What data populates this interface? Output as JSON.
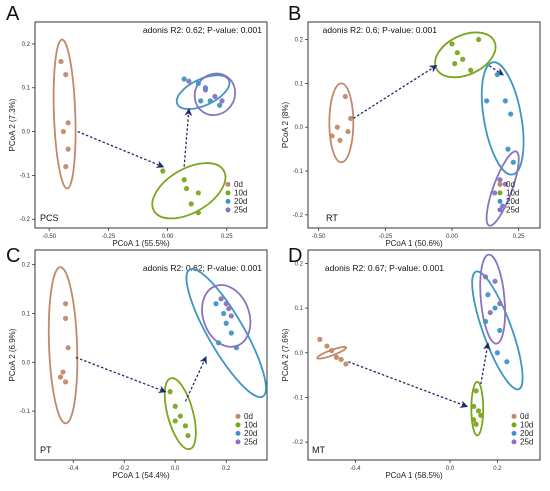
{
  "colors": {
    "0d": "#c08a6a",
    "10d": "#7aa61e",
    "20d": "#3f95c4",
    "25d": "#8a73be",
    "arrow": "#1f2a6b"
  },
  "chart_data": [
    {
      "panel": "A",
      "type": "scatter",
      "title": "adonis R2: 0.62; P-value: 0.001",
      "name": "PCS",
      "xlabel": "PCoA 1 (55.5%)",
      "ylabel": "PCoA 2 (7.3%)",
      "xlim": [
        -0.56,
        0.42
      ],
      "ylim": [
        -0.22,
        0.25
      ],
      "xticks": [
        -0.5,
        -0.25,
        0.0,
        0.25
      ],
      "xticklabels": [
        "-0.50",
        "-0.25",
        "0.00",
        "0.25"
      ],
      "yticks": [
        -0.2,
        -0.1,
        0.0,
        0.1,
        0.2
      ],
      "yticklabels": [
        "-0.2",
        "-0.1",
        "0.0",
        "0.1",
        "0.2"
      ],
      "legend": [
        "0d",
        "10d",
        "20d",
        "25d"
      ],
      "series": [
        {
          "name": "0d",
          "points": [
            [
              -0.45,
              0.16
            ],
            [
              -0.43,
              0.13
            ],
            [
              -0.42,
              0.02
            ],
            [
              -0.44,
              0.0
            ],
            [
              -0.42,
              -0.04
            ],
            [
              -0.43,
              -0.08
            ]
          ],
          "ellipse": [
            -0.435,
            0.04,
            0.045,
            0.17,
            -2
          ]
        },
        {
          "name": "10d",
          "points": [
            [
              -0.02,
              -0.09
            ],
            [
              0.07,
              -0.11
            ],
            [
              0.08,
              -0.13
            ],
            [
              0.13,
              -0.14
            ],
            [
              0.1,
              -0.165
            ],
            [
              0.13,
              -0.185
            ]
          ],
          "ellipse": [
            0.09,
            -0.135,
            0.17,
            0.05,
            -30
          ]
        },
        {
          "name": "20d",
          "points": [
            [
              0.07,
              0.12
            ],
            [
              0.13,
              0.11
            ],
            [
              0.16,
              0.1
            ],
            [
              0.14,
              0.07
            ],
            [
              0.18,
              0.07
            ],
            [
              0.22,
              0.06
            ]
          ],
          "ellipse": [
            0.15,
            0.09,
            0.12,
            0.03,
            -25
          ]
        },
        {
          "name": "25d",
          "points": [
            [
              0.09,
              0.115
            ],
            [
              0.16,
              0.095
            ],
            [
              0.2,
              0.08
            ],
            [
              0.23,
              0.07
            ]
          ],
          "ellipse": [
            0.2,
            0.085,
            0.09,
            0.045,
            -55
          ]
        }
      ],
      "arrows": [
        [
          -0.38,
          0.0,
          -0.02,
          -0.08
        ],
        [
          0.07,
          -0.08,
          0.09,
          0.05
        ]
      ]
    },
    {
      "panel": "B",
      "type": "scatter",
      "title": "adonis R2: 0.6; P-value: 0.001",
      "name": "RT",
      "xlabel": "PCoA 1 (50.6%)",
      "ylabel": "PCoA 2 (8%)",
      "xlim": [
        -0.54,
        0.33
      ],
      "ylim": [
        -0.23,
        0.24
      ],
      "xticks": [
        -0.5,
        -0.25,
        0.0,
        0.25
      ],
      "xticklabels": [
        "-0.50",
        "-0.25",
        "0.00",
        "0.25"
      ],
      "yticks": [
        -0.2,
        -0.1,
        0.0,
        0.1,
        0.2
      ],
      "yticklabels": [
        "-0.2",
        "-0.1",
        "0.0",
        "0.1",
        "0.2"
      ],
      "legend": [
        "0d",
        "10d",
        "20d",
        "25d"
      ],
      "series": [
        {
          "name": "0d",
          "points": [
            [
              -0.4,
              0.07
            ],
            [
              -0.38,
              0.02
            ],
            [
              -0.43,
              0.0
            ],
            [
              -0.39,
              -0.01
            ],
            [
              -0.42,
              -0.03
            ],
            [
              -0.45,
              -0.02
            ]
          ],
          "ellipse": [
            -0.415,
            0.01,
            0.045,
            0.09,
            0
          ]
        },
        {
          "name": "10d",
          "points": [
            [
              0.0,
              0.19
            ],
            [
              0.1,
              0.2
            ],
            [
              0.02,
              0.17
            ],
            [
              0.04,
              0.155
            ],
            [
              0.07,
              0.13
            ],
            [
              0.01,
              0.145
            ]
          ],
          "ellipse": [
            0.05,
            0.165,
            0.12,
            0.045,
            -25
          ]
        },
        {
          "name": "20d",
          "points": [
            [
              0.17,
              0.12
            ],
            [
              0.13,
              0.06
            ],
            [
              0.2,
              0.06
            ],
            [
              0.22,
              0.03
            ],
            [
              0.21,
              -0.05
            ],
            [
              0.23,
              -0.08
            ]
          ],
          "ellipse": [
            0.19,
            0.02,
            0.07,
            0.13,
            -10
          ]
        },
        {
          "name": "25d",
          "points": [
            [
              0.18,
              -0.12
            ],
            [
              0.2,
              -0.13
            ],
            [
              0.16,
              -0.15
            ],
            [
              0.19,
              -0.18
            ]
          ],
          "ellipse": [
            0.19,
            -0.14,
            0.035,
            0.09,
            20
          ]
        }
      ],
      "arrows": [
        [
          -0.37,
          0.02,
          -0.06,
          0.14
        ],
        [
          0.14,
          0.14,
          0.19,
          0.12
        ]
      ]
    },
    {
      "panel": "C",
      "type": "scatter",
      "title": "adonis R2: 0.62; P-value: 0.001",
      "name": "PT",
      "xlabel": "PCoA 1 (54.4%)",
      "ylabel": "PCoA 2 (6.9%)",
      "xlim": [
        -0.55,
        0.36
      ],
      "ylim": [
        -0.2,
        0.23
      ],
      "xticks": [
        -0.4,
        -0.2,
        0.0,
        0.2
      ],
      "xticklabels": [
        "-0.4",
        "-0.2",
        "0.0",
        "0.2"
      ],
      "yticks": [
        -0.1,
        0.0,
        0.1,
        0.2
      ],
      "yticklabels": [
        "-0.1",
        "0.0",
        "0.1",
        "0.2"
      ],
      "legend": [
        "0d",
        "10d",
        "20d",
        "25d"
      ],
      "series": [
        {
          "name": "0d",
          "points": [
            [
              -0.43,
              0.12
            ],
            [
              -0.43,
              0.09
            ],
            [
              -0.42,
              0.03
            ],
            [
              -0.44,
              -0.02
            ],
            [
              -0.45,
              -0.03
            ],
            [
              -0.43,
              -0.04
            ]
          ],
          "ellipse": [
            -0.44,
            0.035,
            0.055,
            0.16,
            -2
          ]
        },
        {
          "name": "10d",
          "points": [
            [
              -0.02,
              -0.06
            ],
            [
              0.0,
              -0.09
            ],
            [
              0.02,
              -0.11
            ],
            [
              0.04,
              -0.13
            ],
            [
              0.0,
              -0.12
            ],
            [
              0.05,
              -0.15
            ]
          ],
          "ellipse": [
            0.02,
            -0.105,
            0.05,
            0.075,
            -15
          ]
        },
        {
          "name": "20d",
          "points": [
            [
              0.16,
              0.12
            ],
            [
              0.19,
              0.1
            ],
            [
              0.2,
              0.08
            ],
            [
              0.22,
              0.06
            ],
            [
              0.17,
              0.04
            ],
            [
              0.24,
              0.03
            ]
          ],
          "ellipse": [
            0.2,
            0.06,
            0.07,
            0.15,
            -30
          ]
        },
        {
          "name": "25d",
          "points": [
            [
              0.18,
              0.13
            ],
            [
              0.2,
              0.12
            ],
            [
              0.21,
              0.11
            ],
            [
              0.22,
              0.095
            ]
          ],
          "ellipse": [
            0.2,
            0.095,
            0.09,
            0.065,
            -20
          ]
        }
      ],
      "arrows": [
        [
          -0.39,
          0.01,
          -0.04,
          -0.06
        ],
        [
          0.04,
          -0.08,
          0.12,
          0.01
        ]
      ]
    },
    {
      "panel": "D",
      "type": "scatter",
      "title": "adonis R2: 0.67; P-value: 0.001",
      "name": "MT",
      "xlabel": "PCoA 1 (58.5%)",
      "ylabel": "PCoA 2 (7.6%)",
      "xlim": [
        -0.6,
        0.38
      ],
      "ylim": [
        -0.24,
        0.23
      ],
      "xticks": [
        -0.4,
        0.0,
        0.2
      ],
      "xticklabels": [
        "-0.4",
        "0.0",
        "0.2"
      ],
      "yticks": [
        -0.2,
        -0.1,
        0.0,
        0.1,
        0.2
      ],
      "yticklabels": [
        "-0.2",
        "-0.1",
        "0.0",
        "0.1",
        "0.2"
      ],
      "legend": [
        "0d",
        "10d",
        "20d",
        "25d"
      ],
      "series": [
        {
          "name": "0d",
          "points": [
            [
              -0.55,
              0.03
            ],
            [
              -0.52,
              0.015
            ],
            [
              -0.5,
              0.005
            ],
            [
              -0.48,
              -0.01
            ],
            [
              -0.46,
              -0.015
            ],
            [
              -0.44,
              -0.025
            ]
          ],
          "ellipse": [
            -0.5,
            0.0,
            0.065,
            0.006,
            -20
          ]
        },
        {
          "name": "10d",
          "points": [
            [
              0.11,
              -0.085
            ],
            [
              0.1,
              -0.12
            ],
            [
              0.12,
              -0.13
            ],
            [
              0.1,
              -0.15
            ],
            [
              0.13,
              -0.14
            ],
            [
              0.11,
              -0.16
            ]
          ],
          "ellipse": [
            0.115,
            -0.125,
            0.025,
            0.06,
            0
          ]
        },
        {
          "name": "20d",
          "points": [
            [
              0.16,
              0.13
            ],
            [
              0.19,
              0.1
            ],
            [
              0.15,
              0.07
            ],
            [
              0.21,
              0.05
            ],
            [
              0.2,
              0.0
            ],
            [
              0.24,
              -0.02
            ]
          ],
          "ellipse": [
            0.2,
            0.05,
            0.06,
            0.14,
            -20
          ]
        },
        {
          "name": "25d",
          "points": [
            [
              0.15,
              0.17
            ],
            [
              0.19,
              0.16
            ],
            [
              0.21,
              0.11
            ],
            [
              0.17,
              0.09
            ]
          ],
          "ellipse": [
            0.18,
            0.12,
            0.05,
            0.1,
            -5
          ]
        }
      ],
      "arrows": [
        [
          -0.43,
          -0.02,
          0.07,
          -0.12
        ],
        [
          0.13,
          -0.07,
          0.16,
          0.02
        ]
      ]
    }
  ]
}
